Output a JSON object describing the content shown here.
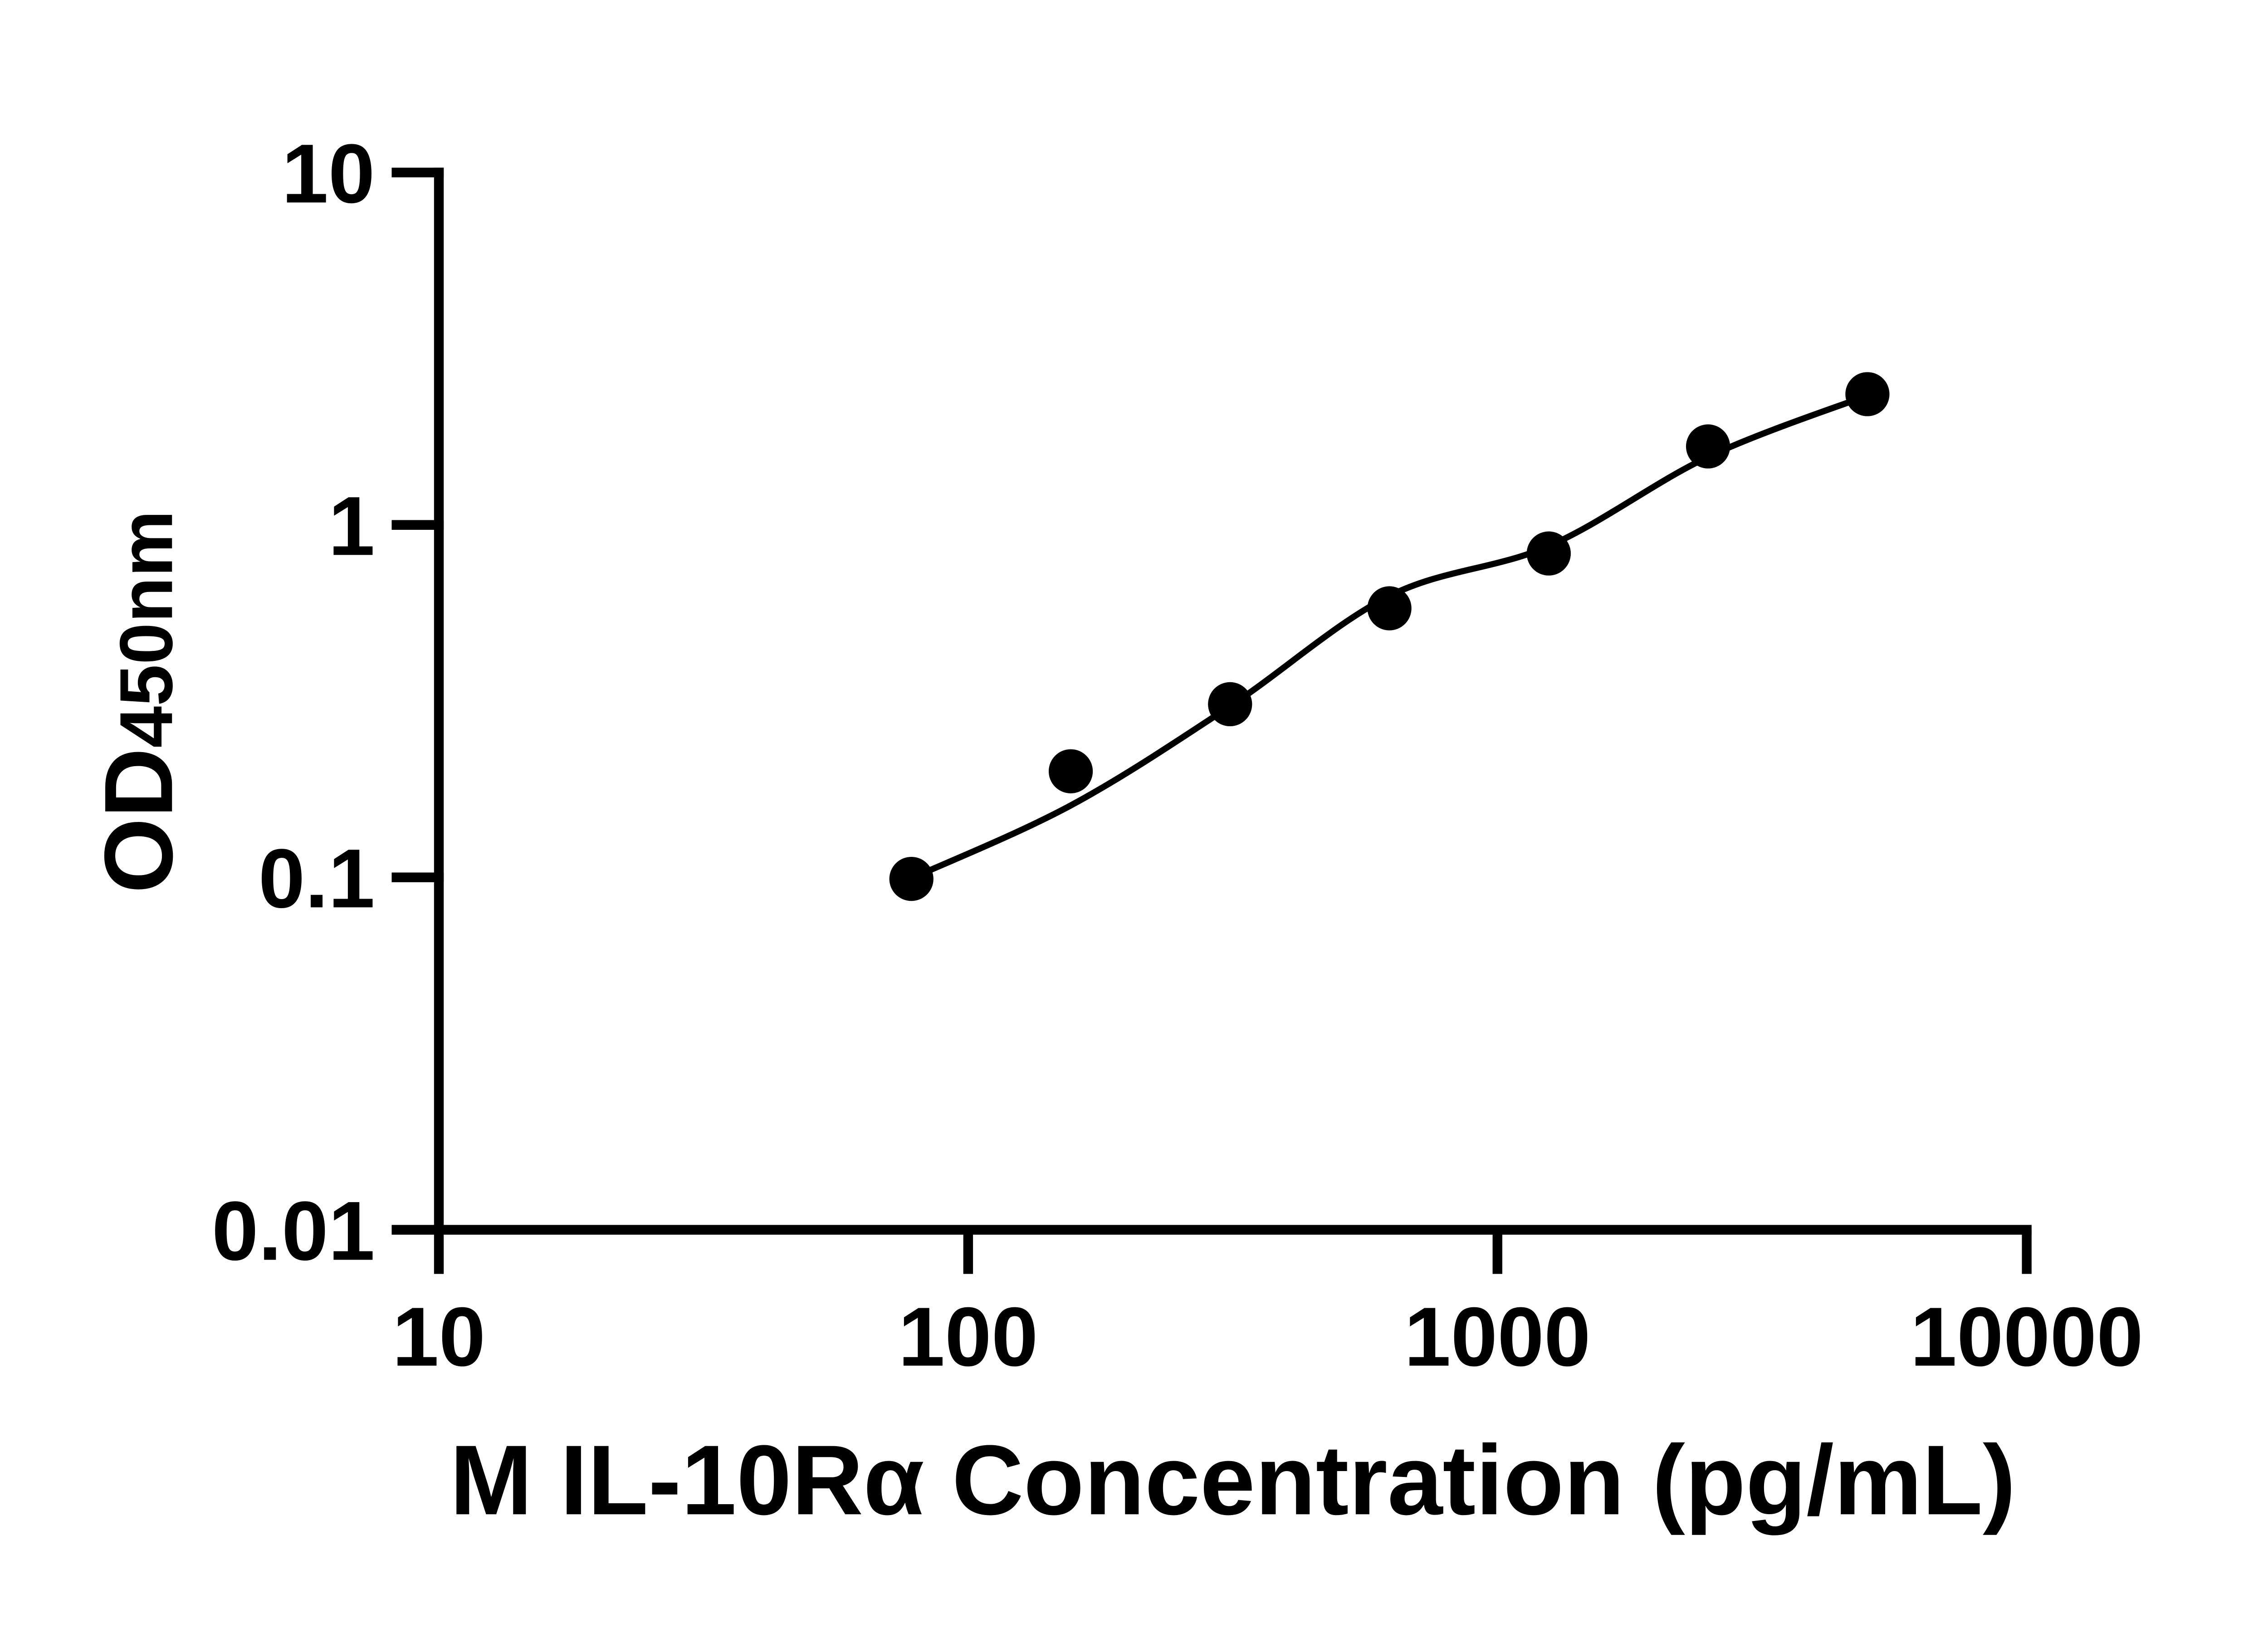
{
  "figure": {
    "background_color": "#ffffff",
    "axis_color": "#000000"
  },
  "chart_data": {
    "type": "scatter",
    "title": "",
    "xlabel": "M IL-10Rα Concentration (pg/mL)",
    "ylabel_main": "OD",
    "ylabel_sub": "450nm",
    "x_scale": "log10",
    "y_scale": "log10",
    "xlim": [
      10,
      10000
    ],
    "ylim": [
      0.01,
      10
    ],
    "grid": false,
    "legend": "none",
    "x_ticks": [
      {
        "value": 10,
        "label": "10"
      },
      {
        "value": 100,
        "label": "100"
      },
      {
        "value": 1000,
        "label": "1000"
      },
      {
        "value": 10000,
        "label": "10000"
      }
    ],
    "y_ticks": [
      {
        "value": 10,
        "label": "10"
      },
      {
        "value": 1,
        "label": "1"
      },
      {
        "value": 0.1,
        "label": "0.1"
      },
      {
        "value": 0.01,
        "label": "0.01"
      }
    ],
    "series": [
      {
        "name": "standard-curve-points",
        "marker": "filled-circle",
        "color": "#000000",
        "points": [
          {
            "x": 78.125,
            "y": 0.099
          },
          {
            "x": 156.25,
            "y": 0.2
          },
          {
            "x": 312.5,
            "y": 0.31
          },
          {
            "x": 625,
            "y": 0.58
          },
          {
            "x": 1250,
            "y": 0.83
          },
          {
            "x": 2500,
            "y": 1.67
          },
          {
            "x": 5000,
            "y": 2.35
          }
        ]
      }
    ],
    "fit_curve": {
      "name": "four-parameter-logistic-fit",
      "color": "#000000",
      "anchors": [
        {
          "x": 78.125,
          "y": 0.0994
        },
        {
          "x": 156.25,
          "y": 0.16
        },
        {
          "x": 312.5,
          "y": 0.306
        },
        {
          "x": 625,
          "y": 0.629
        },
        {
          "x": 1250,
          "y": 0.871
        },
        {
          "x": 2500,
          "y": 1.56
        },
        {
          "x": 5000,
          "y": 2.33
        }
      ]
    }
  }
}
